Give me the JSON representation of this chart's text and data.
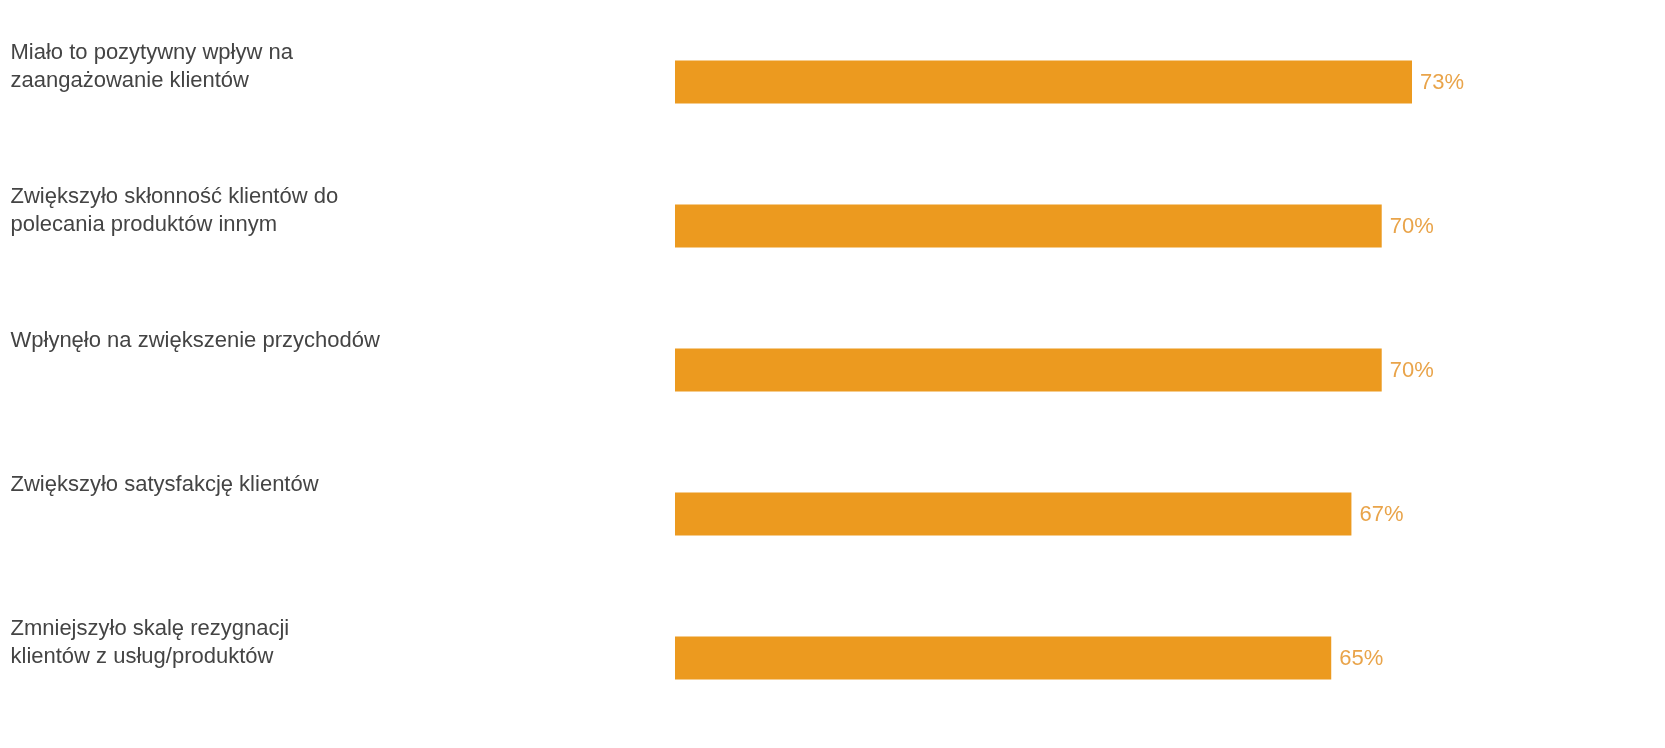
{
  "chart_data": {
    "type": "bar",
    "orientation": "horizontal",
    "categories": [
      "Miało to pozytywny wpływ na zaangażowanie klientów",
      "Zwiększyło skłonność klientów do polecania produktów innym",
      "Wpłynęło na zwiększenie przychodów",
      "Zwiększyło satysfakcję klientów",
      "Zmniejszyło skalę rezygnacji klientów z usług/produktów"
    ],
    "values": [
      73,
      70,
      70,
      67,
      65
    ],
    "value_labels": [
      "73%",
      "70%",
      "70%",
      "67%",
      "65%"
    ],
    "color": "#ec9a1f",
    "tick_labels": "y"
  }
}
